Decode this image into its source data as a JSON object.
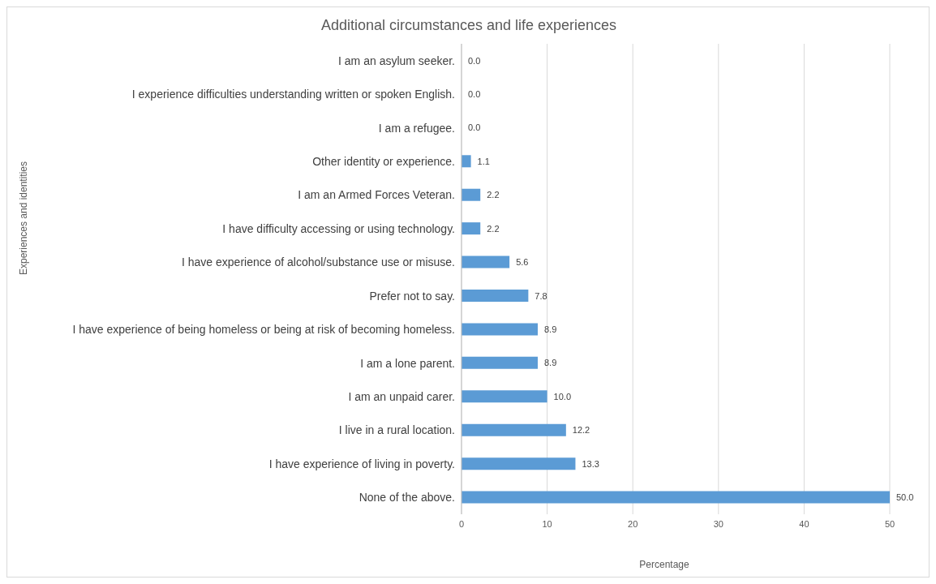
{
  "chart_data": {
    "type": "bar",
    "orientation": "horizontal",
    "title": "Additional circumstances and life experiences",
    "xlabel": "Percentage",
    "ylabel": "Experiences and identities",
    "categories": [
      "I am an asylum seeker.",
      "I experience difficulties understanding written or spoken English.",
      "I am a refugee.",
      "Other identity or experience.",
      "I am an Armed Forces Veteran.",
      "I have difficulty accessing or using technology.",
      "I have experience of alcohol/substance use or misuse.",
      "Prefer not to say.",
      "I have experience of being homeless or being at risk of becoming homeless.",
      "I am a lone parent.",
      "I am an unpaid carer.",
      "I live in a rural location.",
      "I have experience of living in poverty.",
      "None of the above."
    ],
    "values": [
      0,
      0,
      0,
      1.1,
      2.2,
      2.2,
      5.6,
      7.8,
      8.9,
      8.9,
      10,
      12.2,
      13.3,
      50
    ],
    "value_labels": [
      "0.0",
      "0.0",
      "0.0",
      "1.1",
      "2.2",
      "2.2",
      "5.6",
      "7.8",
      "8.9",
      "8.9",
      "10.0",
      "12.2",
      "13.3",
      "50.0"
    ],
    "color": "#5b9bd5",
    "xlim": [
      0,
      50
    ],
    "xticks": [
      0,
      10,
      20,
      30,
      40,
      50
    ],
    "grid": "x"
  }
}
